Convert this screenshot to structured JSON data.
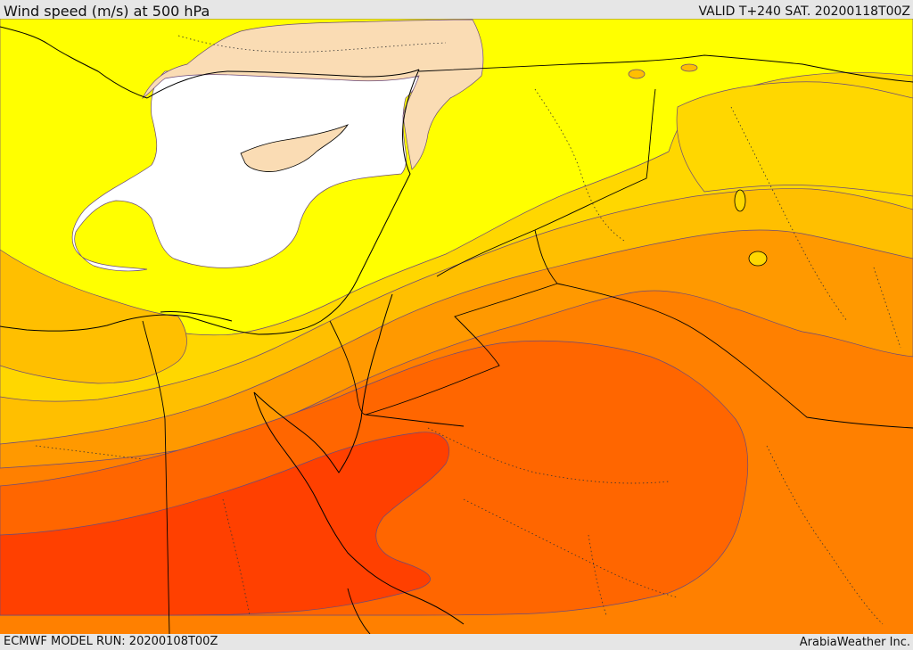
{
  "header": {
    "title": "Wind speed (m/s) at 500 hPa",
    "valid": "VALID T+240 SAT. 20200118T00Z"
  },
  "footer": {
    "model_run": "ECMWF MODEL RUN: 20200108T00Z",
    "credit": "ArabiaWeather Inc."
  },
  "colors": {
    "white_band": "#ffffff",
    "yellow_band": "#ffff00",
    "gold_band": "#ffd700",
    "amber_band": "#ffbf00",
    "orange_band": "#ff9900",
    "dark_orange_band": "#ff8000",
    "red_orange_band": "#ff6600",
    "red_band": "#ff4000",
    "land_tan": "#fadcb4"
  }
}
